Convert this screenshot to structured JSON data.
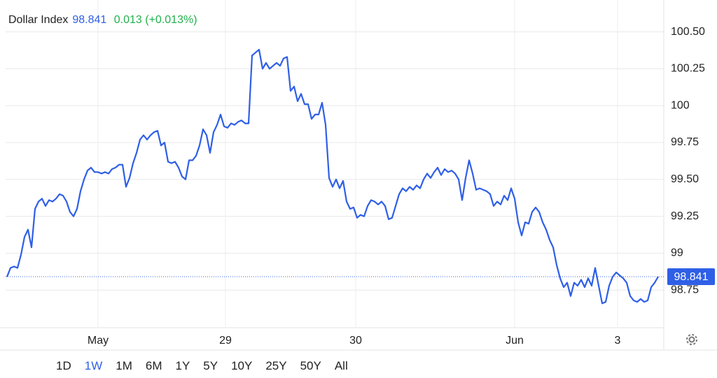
{
  "header": {
    "name": "Dollar Index",
    "price": "98.841",
    "change": "0.013 (+0.013%)"
  },
  "chart_data": {
    "type": "line",
    "series": [
      {
        "name": "Dollar Index",
        "color": "#2f5fe6",
        "values": [
          98.84,
          98.9,
          98.91,
          98.9,
          98.99,
          99.11,
          99.16,
          99.04,
          99.3,
          99.35,
          99.37,
          99.32,
          99.36,
          99.35,
          99.37,
          99.4,
          99.39,
          99.35,
          99.28,
          99.25,
          99.3,
          99.42,
          99.5,
          99.56,
          99.58,
          99.55,
          99.55,
          99.54,
          99.55,
          99.54,
          99.57,
          99.58,
          99.6,
          99.6,
          99.45,
          99.51,
          99.61,
          99.68,
          99.77,
          99.8,
          99.77,
          99.8,
          99.82,
          99.83,
          99.73,
          99.75,
          99.62,
          99.61,
          99.62,
          99.58,
          99.52,
          99.5,
          99.63,
          99.63,
          99.66,
          99.73,
          99.84,
          99.8,
          99.68,
          99.82,
          99.87,
          99.94,
          99.86,
          99.85,
          99.88,
          99.87,
          99.89,
          99.9,
          99.88,
          99.88,
          100.34,
          100.36,
          100.38,
          100.25,
          100.29,
          100.25,
          100.27,
          100.29,
          100.27,
          100.32,
          100.33,
          100.1,
          100.13,
          100.03,
          100.08,
          100.01,
          100.01,
          99.91,
          99.94,
          99.94,
          100.02,
          99.87,
          99.51,
          99.45,
          99.5,
          99.44,
          99.49,
          99.35,
          99.3,
          99.31,
          99.24,
          99.26,
          99.25,
          99.32,
          99.36,
          99.35,
          99.33,
          99.35,
          99.32,
          99.23,
          99.24,
          99.32,
          99.4,
          99.44,
          99.42,
          99.45,
          99.43,
          99.46,
          99.44,
          99.5,
          99.54,
          99.51,
          99.55,
          99.58,
          99.53,
          99.57,
          99.55,
          99.56,
          99.54,
          99.5,
          99.36,
          99.51,
          99.63,
          99.54,
          99.43,
          99.44,
          99.43,
          99.42,
          99.4,
          99.32,
          99.35,
          99.33,
          99.39,
          99.36,
          99.44,
          99.37,
          99.21,
          99.12,
          99.21,
          99.2,
          99.28,
          99.31,
          99.28,
          99.21,
          99.16,
          99.09,
          99.04,
          98.92,
          98.83,
          98.77,
          98.8,
          98.71,
          98.8,
          98.78,
          98.82,
          98.77,
          98.83,
          98.78,
          98.9,
          98.78,
          98.66,
          98.67,
          98.78,
          98.84,
          98.87,
          98.85,
          98.83,
          98.8,
          98.71,
          98.68,
          98.67,
          98.69,
          98.67,
          98.68,
          98.77,
          98.8,
          98.841
        ]
      }
    ],
    "xlim": [
      -0.4,
      187.6
    ],
    "xticks": [
      {
        "value": 26,
        "label": "May"
      },
      {
        "value": 62.4,
        "label": "29"
      },
      {
        "value": 99.6,
        "label": "30"
      },
      {
        "value": 145,
        "label": "Jun"
      },
      {
        "value": 174.4,
        "label": "3"
      }
    ],
    "ylim": [
      98.5,
      100.6
    ],
    "yticks": [
      {
        "value": 100.5,
        "label": "100.50"
      },
      100.25,
      100,
      99.75,
      {
        "value": 99.5,
        "label": "99.50"
      },
      99.25,
      99,
      98.75
    ],
    "grid": true
  },
  "ranges": {
    "items": [
      "1D",
      "1W",
      "1M",
      "6M",
      "1Y",
      "5Y",
      "10Y",
      "25Y",
      "50Y",
      "All"
    ],
    "active": "1W"
  }
}
